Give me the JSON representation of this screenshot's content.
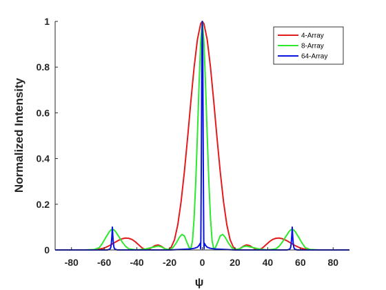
{
  "chart_data": {
    "type": "line",
    "title": "",
    "xlabel": "ψ",
    "ylabel": "Normalized Intensity",
    "xlim": [
      -90,
      90
    ],
    "ylim": [
      0,
      1
    ],
    "x_ticks": [
      -80,
      -60,
      -40,
      -20,
      0,
      20,
      40,
      60,
      80
    ],
    "y_ticks": [
      0,
      0.2,
      0.4,
      0.6,
      0.8,
      1
    ],
    "y_tick_labels": [
      "0",
      "0.2",
      "0.4",
      "0.6",
      "0.8",
      "1"
    ],
    "grid": false,
    "legend_position": "top-right",
    "series": [
      {
        "name": "4-Array",
        "color": "#e31a1c",
        "x": [
          -90,
          -75,
          -68,
          -64,
          -60,
          -56,
          -53,
          -51,
          -49,
          -47,
          -45,
          -43,
          -41,
          -39,
          -37,
          -35,
          -33,
          -31,
          -29,
          -27,
          -25,
          -23,
          -21,
          -19,
          -17,
          -15,
          -13,
          -11,
          -9,
          -7,
          -5,
          -3,
          -1,
          0,
          1,
          3,
          5,
          7,
          9,
          11,
          13,
          15,
          17,
          19,
          21,
          23,
          25,
          27,
          29,
          31,
          33,
          35,
          37,
          39,
          41,
          43,
          45,
          47,
          49,
          51,
          53,
          56,
          60,
          64,
          68,
          75,
          90
        ],
        "y": [
          0,
          0,
          0,
          0.002,
          0.008,
          0.022,
          0.035,
          0.043,
          0.049,
          0.052,
          0.051,
          0.046,
          0.036,
          0.023,
          0.01,
          0.002,
          0.001,
          0.01,
          0.019,
          0.022,
          0.016,
          0.006,
          0.001,
          0.012,
          0.045,
          0.11,
          0.21,
          0.34,
          0.49,
          0.65,
          0.8,
          0.92,
          0.99,
          1.0,
          0.99,
          0.92,
          0.8,
          0.65,
          0.49,
          0.34,
          0.21,
          0.11,
          0.045,
          0.012,
          0.001,
          0.006,
          0.016,
          0.022,
          0.019,
          0.01,
          0.001,
          0.002,
          0.01,
          0.023,
          0.036,
          0.046,
          0.051,
          0.052,
          0.049,
          0.043,
          0.035,
          0.022,
          0.008,
          0.002,
          0,
          0,
          0
        ]
      },
      {
        "name": "8-Array",
        "color": "#2ee82e",
        "x": [
          -90,
          -72,
          -66,
          -63,
          -61,
          -59,
          -57,
          -56,
          -55,
          -54,
          -53,
          -51,
          -49,
          -47,
          -45,
          -40,
          -35,
          -30,
          -27,
          -25,
          -23,
          -20,
          -18,
          -16,
          -14,
          -12.5,
          -11,
          -9.5,
          -8,
          -7,
          -6,
          -5,
          -4,
          -3,
          -2,
          -1,
          0,
          1,
          2,
          3,
          4,
          5,
          6,
          7,
          8,
          9.5,
          11,
          12.5,
          14,
          16,
          18,
          20,
          23,
          25,
          27,
          30,
          35,
          40,
          45,
          47,
          49,
          51,
          53,
          54,
          55,
          56,
          57,
          59,
          61,
          63,
          66,
          72,
          90
        ],
        "y": [
          0,
          0,
          0.002,
          0.01,
          0.03,
          0.055,
          0.078,
          0.087,
          0.09,
          0.088,
          0.08,
          0.058,
          0.035,
          0.016,
          0.005,
          0,
          0.004,
          0.012,
          0.017,
          0.014,
          0.005,
          0.002,
          0.01,
          0.03,
          0.055,
          0.068,
          0.062,
          0.035,
          0.01,
          0.005,
          0.04,
          0.14,
          0.3,
          0.5,
          0.72,
          0.91,
          1.0,
          0.91,
          0.72,
          0.5,
          0.3,
          0.14,
          0.04,
          0.005,
          0.01,
          0.035,
          0.062,
          0.068,
          0.055,
          0.03,
          0.01,
          0.002,
          0.005,
          0.014,
          0.017,
          0.012,
          0.004,
          0,
          0.005,
          0.016,
          0.035,
          0.058,
          0.08,
          0.088,
          0.09,
          0.087,
          0.078,
          0.055,
          0.03,
          0.01,
          0.002,
          0,
          0
        ]
      },
      {
        "name": "64-Array",
        "color": "#0a14e0",
        "x": [
          -90,
          -58,
          -56.5,
          -56,
          -55.6,
          -55.3,
          -55,
          -54.7,
          -54.4,
          -54,
          -53.5,
          -52,
          -40,
          -20,
          -8,
          -5,
          -3,
          -2,
          -1.2,
          -1.05,
          -0.9,
          -0.6,
          -0.3,
          0,
          0.3,
          0.6,
          0.9,
          1.05,
          1.2,
          2,
          3,
          5,
          8,
          20,
          40,
          52,
          53.5,
          54,
          54.4,
          54.7,
          55,
          55.3,
          55.6,
          56,
          56.5,
          58,
          90
        ],
        "y": [
          0,
          0,
          0.004,
          0.01,
          0.03,
          0.06,
          0.1,
          0.06,
          0.03,
          0.01,
          0.004,
          0,
          0,
          0,
          0.004,
          0.007,
          0.012,
          0.02,
          0.03,
          0.005,
          0.04,
          0.38,
          0.83,
          1.0,
          0.83,
          0.38,
          0.04,
          0.005,
          0.03,
          0.02,
          0.012,
          0.007,
          0.004,
          0,
          0,
          0,
          0.004,
          0.01,
          0.03,
          0.06,
          0.1,
          0.06,
          0.03,
          0.01,
          0.004,
          0,
          0
        ]
      }
    ]
  }
}
